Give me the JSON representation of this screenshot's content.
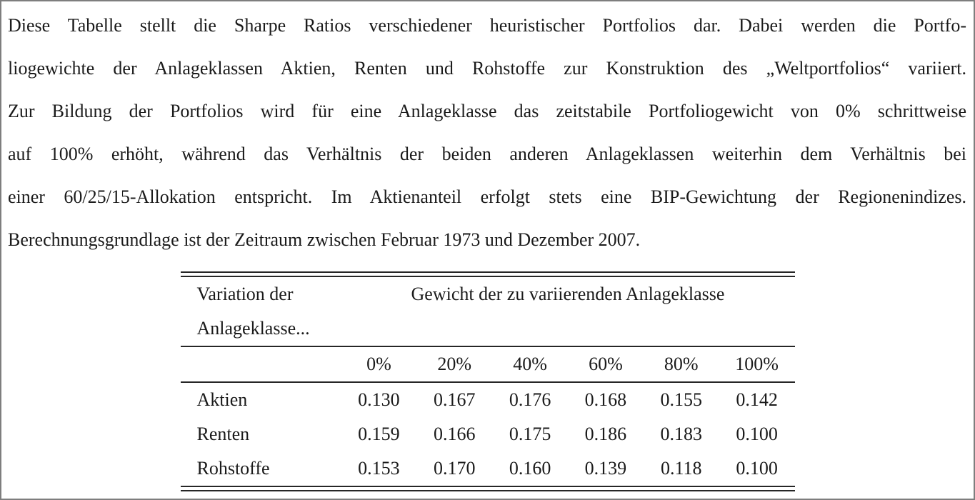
{
  "paragraph": {
    "lines": [
      "Diese Tabelle stellt die Sharpe Ratios verschiedener heuristischer Portfolios dar. Dabei werden die Portfo-",
      "liogewichte der Anlageklassen Aktien, Renten und Rohstoffe zur Konstruktion des „Weltportfolios“ variiert.",
      "Zur Bildung der Portfolios wird für eine Anlageklasse das zeitstabile Portfoliogewicht von 0% schrittweise",
      "auf 100% erhöht, während das Verhältnis der beiden anderen Anlageklassen weiterhin dem Verhältnis bei",
      "einer 60/25/15-Allokation entspricht. Im Aktienanteil erfolgt stets eine BIP-Gewichtung der Regionenindizes.",
      "Berechnungsgrundlage ist der Zeitraum zwischen Februar 1973 und Dezember 2007."
    ]
  },
  "table": {
    "header": {
      "col1_line1": "Variation der",
      "col1_line2": "Anlageklasse...",
      "span_title": "Gewicht der zu variierenden Anlageklasse",
      "weights": [
        "0%",
        "20%",
        "40%",
        "60%",
        "80%",
        "100%"
      ]
    },
    "rows": [
      {
        "label": "Aktien",
        "values": [
          "0.130",
          "0.167",
          "0.176",
          "0.168",
          "0.155",
          "0.142"
        ]
      },
      {
        "label": "Renten",
        "values": [
          "0.159",
          "0.166",
          "0.175",
          "0.186",
          "0.183",
          "0.100"
        ]
      },
      {
        "label": "Rohstoffe",
        "values": [
          "0.153",
          "0.170",
          "0.160",
          "0.139",
          "0.118",
          "0.100"
        ]
      }
    ]
  },
  "colors": {
    "text": "#1b1b1b",
    "rule": "#262626",
    "page_border": "#7e7e7e",
    "background": "#ffffff"
  }
}
